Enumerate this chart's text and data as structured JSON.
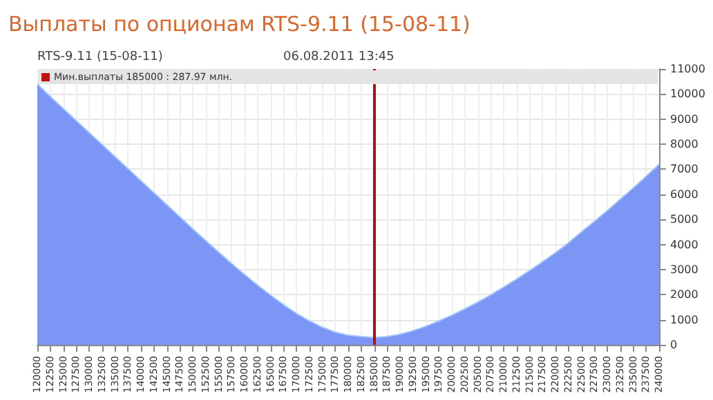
{
  "chart_data": {
    "type": "area",
    "title": "Выплаты по опционам RTS-9.11 (15-08-11)",
    "subtitle": "RTS-9.11 (15-08-11)",
    "annotations": [
      "06.08.2011 13:45",
      "Мин.выплаты 185000 : 287.97 млн."
    ],
    "categories": [
      "120000",
      "122500",
      "125000",
      "127500",
      "130000",
      "132500",
      "135000",
      "137500",
      "140000",
      "142500",
      "145000",
      "147500",
      "150000",
      "152500",
      "155000",
      "157500",
      "160000",
      "162500",
      "165000",
      "167500",
      "170000",
      "172500",
      "175000",
      "177500",
      "180000",
      "182500",
      "185000",
      "187500",
      "190000",
      "192500",
      "195000",
      "197500",
      "200000",
      "202500",
      "205000",
      "207500",
      "210000",
      "212500",
      "215000",
      "217500",
      "220000",
      "222500",
      "225000",
      "227500",
      "230000",
      "232500",
      "235000",
      "237500",
      "240000"
    ],
    "series": [
      {
        "color": "#7b96f5",
        "values": [
          10400,
          9900,
          9420,
          8940,
          8460,
          7980,
          7500,
          7020,
          6540,
          6060,
          5580,
          5100,
          4620,
          4150,
          3690,
          3240,
          2800,
          2380,
          1980,
          1600,
          1250,
          950,
          700,
          500,
          380,
          330,
          290,
          330,
          420,
          560,
          740,
          950,
          1180,
          1430,
          1700,
          1990,
          2300,
          2620,
          2960,
          3310,
          3670,
          4060,
          4500,
          4920,
          5350,
          5800,
          6250,
          6720,
          7200
        ]
      }
    ],
    "ylim": [
      0,
      11000
    ],
    "yticks": [
      0,
      1000,
      2000,
      3000,
      4000,
      5000,
      6000,
      7000,
      8000,
      9000,
      10000,
      11000
    ],
    "ref_lines": [
      {
        "axis": "x",
        "value": "185000",
        "color": "#a01818"
      }
    ],
    "grid": true
  }
}
